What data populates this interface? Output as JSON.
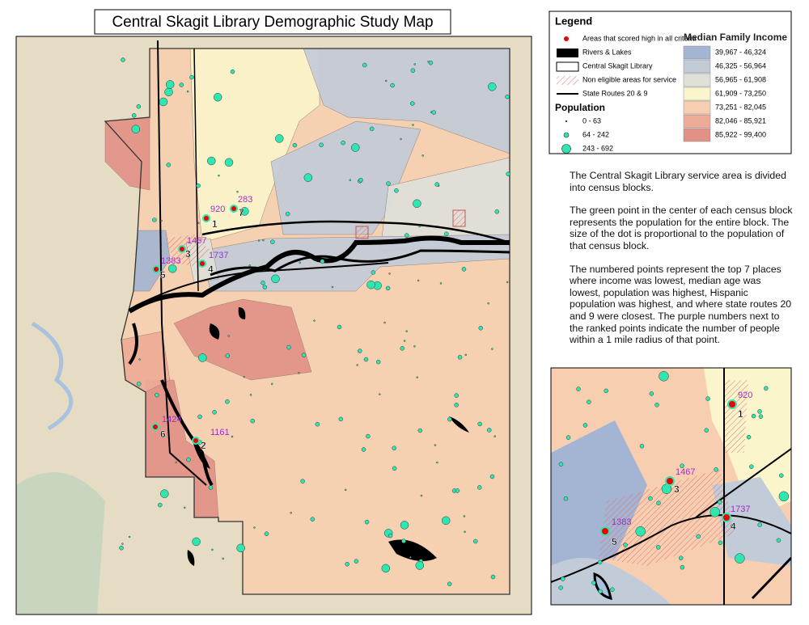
{
  "title": "Central Skagit Library Demographic Study Map",
  "legend": {
    "title": "Legend",
    "items": [
      "Areas that scored high in all criteria",
      "Rivers & Lakes",
      "Central Skagit Library",
      "Non eligible areas for service",
      "State Routes 20 & 9"
    ],
    "population": {
      "title": "Population",
      "classes": [
        "0 - 63",
        "64 - 242",
        "243 - 692"
      ]
    },
    "income": {
      "title": "Median Family Income",
      "classes": [
        {
          "label": "39,967 - 46,324",
          "color": "#a3b5d3"
        },
        {
          "label": "46,325 - 56,964",
          "color": "#c2cbd8"
        },
        {
          "label": "56,965 - 61,908",
          "color": "#dfe1d9"
        },
        {
          "label": "61,909 - 73,250",
          "color": "#fbf5cc"
        },
        {
          "label": "73,251 - 82,045",
          "color": "#f7cfb0"
        },
        {
          "label": "82,046 - 85,921",
          "color": "#eeab96"
        },
        {
          "label": "85,922 - 99,400",
          "color": "#e29187"
        }
      ]
    }
  },
  "description": [
    "The Central Skagit Library service area is divided into census blocks.",
    "The green point in the center of each census block represents the population for the entire block. The size of the dot is proportional to the population of that census block.",
    "The numbered points represent the top 7 places where income was lowest, median age was lowest, population was highest, Hispanic population was highest, and where state routes 20 and 9 were closest. The purple numbers next to the ranked points indicate the number of people within a 1 mile radius of that point."
  ],
  "map": {
    "ranked_points": [
      {
        "rank": "1",
        "count": "920"
      },
      {
        "rank": "7",
        "count": "283"
      },
      {
        "rank": "3",
        "count": "1467"
      },
      {
        "rank": "4",
        "count": "1737"
      },
      {
        "rank": "5",
        "count": "1383"
      },
      {
        "rank": "6",
        "count": "1424"
      },
      {
        "rank": "2",
        "count": "1161"
      }
    ]
  },
  "inset": {
    "ranked_points": [
      {
        "rank": "1",
        "count": "920"
      },
      {
        "rank": "3",
        "count": "1467"
      },
      {
        "rank": "4",
        "count": "1737"
      },
      {
        "rank": "5",
        "count": "1383"
      }
    ]
  }
}
